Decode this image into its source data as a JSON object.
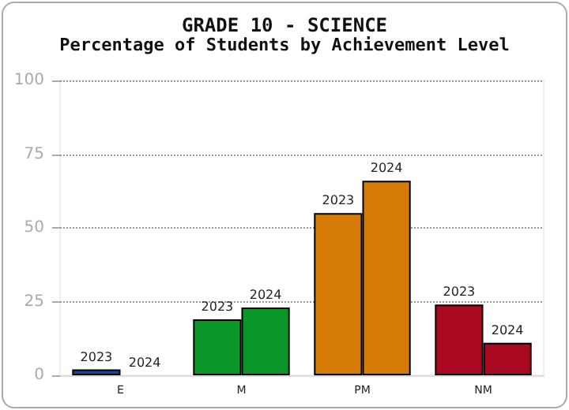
{
  "chart_data": {
    "type": "bar",
    "title": "GRADE 10 - SCIENCE",
    "subtitle": "Percentage of Students by Achievement Level",
    "categories": [
      "E",
      "M",
      "PM",
      "NM"
    ],
    "series": [
      {
        "name": "2023",
        "colors": [
          "#0a4a9a",
          "#0a9628",
          "#d67a08",
          "#a80820"
        ],
        "values": [
          2,
          19,
          55,
          24
        ]
      },
      {
        "name": "2024",
        "colors": [
          "#0a4a9a",
          "#0a9628",
          "#d67a08",
          "#a80820"
        ],
        "values": [
          0,
          23,
          66,
          11
        ]
      }
    ],
    "ylim": [
      0,
      100
    ],
    "yticks": [
      0,
      25,
      50,
      75,
      100
    ],
    "grid": "y",
    "legend": false
  }
}
